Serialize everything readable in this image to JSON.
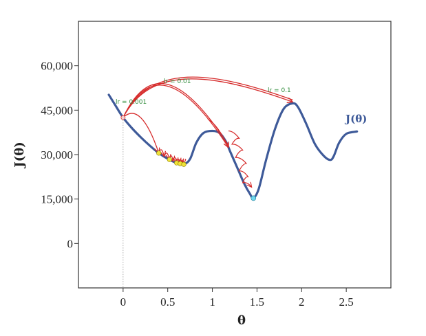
{
  "chart_data": {
    "type": "line",
    "title": "",
    "xlabel": "θ",
    "ylabel": "J(θ)",
    "xlim": [
      -0.5,
      3.0
    ],
    "ylim": [
      -15000,
      75000
    ],
    "x_ticks": [
      0,
      0.5,
      1,
      1.5,
      2,
      2.5
    ],
    "x_tick_labels": [
      "0",
      "0.5",
      "1",
      "1.5",
      "2",
      "2.5"
    ],
    "y_ticks": [
      0,
      15000,
      30000,
      45000,
      60000
    ],
    "y_tick_labels": [
      "0",
      "15,000",
      "30,000",
      "45,000",
      "60,000"
    ],
    "grid": false,
    "series": [
      {
        "name": "J(θ)",
        "color": "#3e5a99",
        "x": [
          -0.16,
          -0.1,
          0.0,
          0.1,
          0.2,
          0.3,
          0.4,
          0.5,
          0.6,
          0.68,
          0.75,
          0.82,
          0.9,
          1.0,
          1.08,
          1.15,
          1.2,
          1.28,
          1.36,
          1.42,
          1.46,
          1.52,
          1.6,
          1.7,
          1.8,
          1.9,
          1.96,
          2.05,
          2.15,
          2.25,
          2.32,
          2.36,
          2.42,
          2.5,
          2.62
        ],
        "y": [
          50200,
          47300,
          42500,
          38900,
          35800,
          33000,
          30500,
          28600,
          27200,
          26700,
          28500,
          34000,
          37300,
          38000,
          37300,
          34500,
          31000,
          25500,
          20000,
          16800,
          15300,
          18500,
          28000,
          38500,
          45500,
          47300,
          46000,
          40500,
          33500,
          29500,
          28200,
          29500,
          34000,
          37000,
          37800
        ]
      }
    ],
    "trajectories": [
      {
        "label": "lr = 0.001",
        "color": "#2e8b3a",
        "start": [
          0.0,
          42500
        ],
        "end": [
          0.68,
          26700
        ]
      },
      {
        "label": "lr = 0.01",
        "color": "#2e8b3a",
        "start": [
          0.0,
          42500
        ],
        "end": [
          1.46,
          15300
        ]
      },
      {
        "label": "lr = 0.1",
        "color": "#2e8b3a",
        "start": [
          0.0,
          42500
        ],
        "end": [
          1.9,
          47300
        ]
      }
    ],
    "step_color": "#d62b2b",
    "curve_label": "J(θ)",
    "curve_label_color": "#3e5a99"
  }
}
